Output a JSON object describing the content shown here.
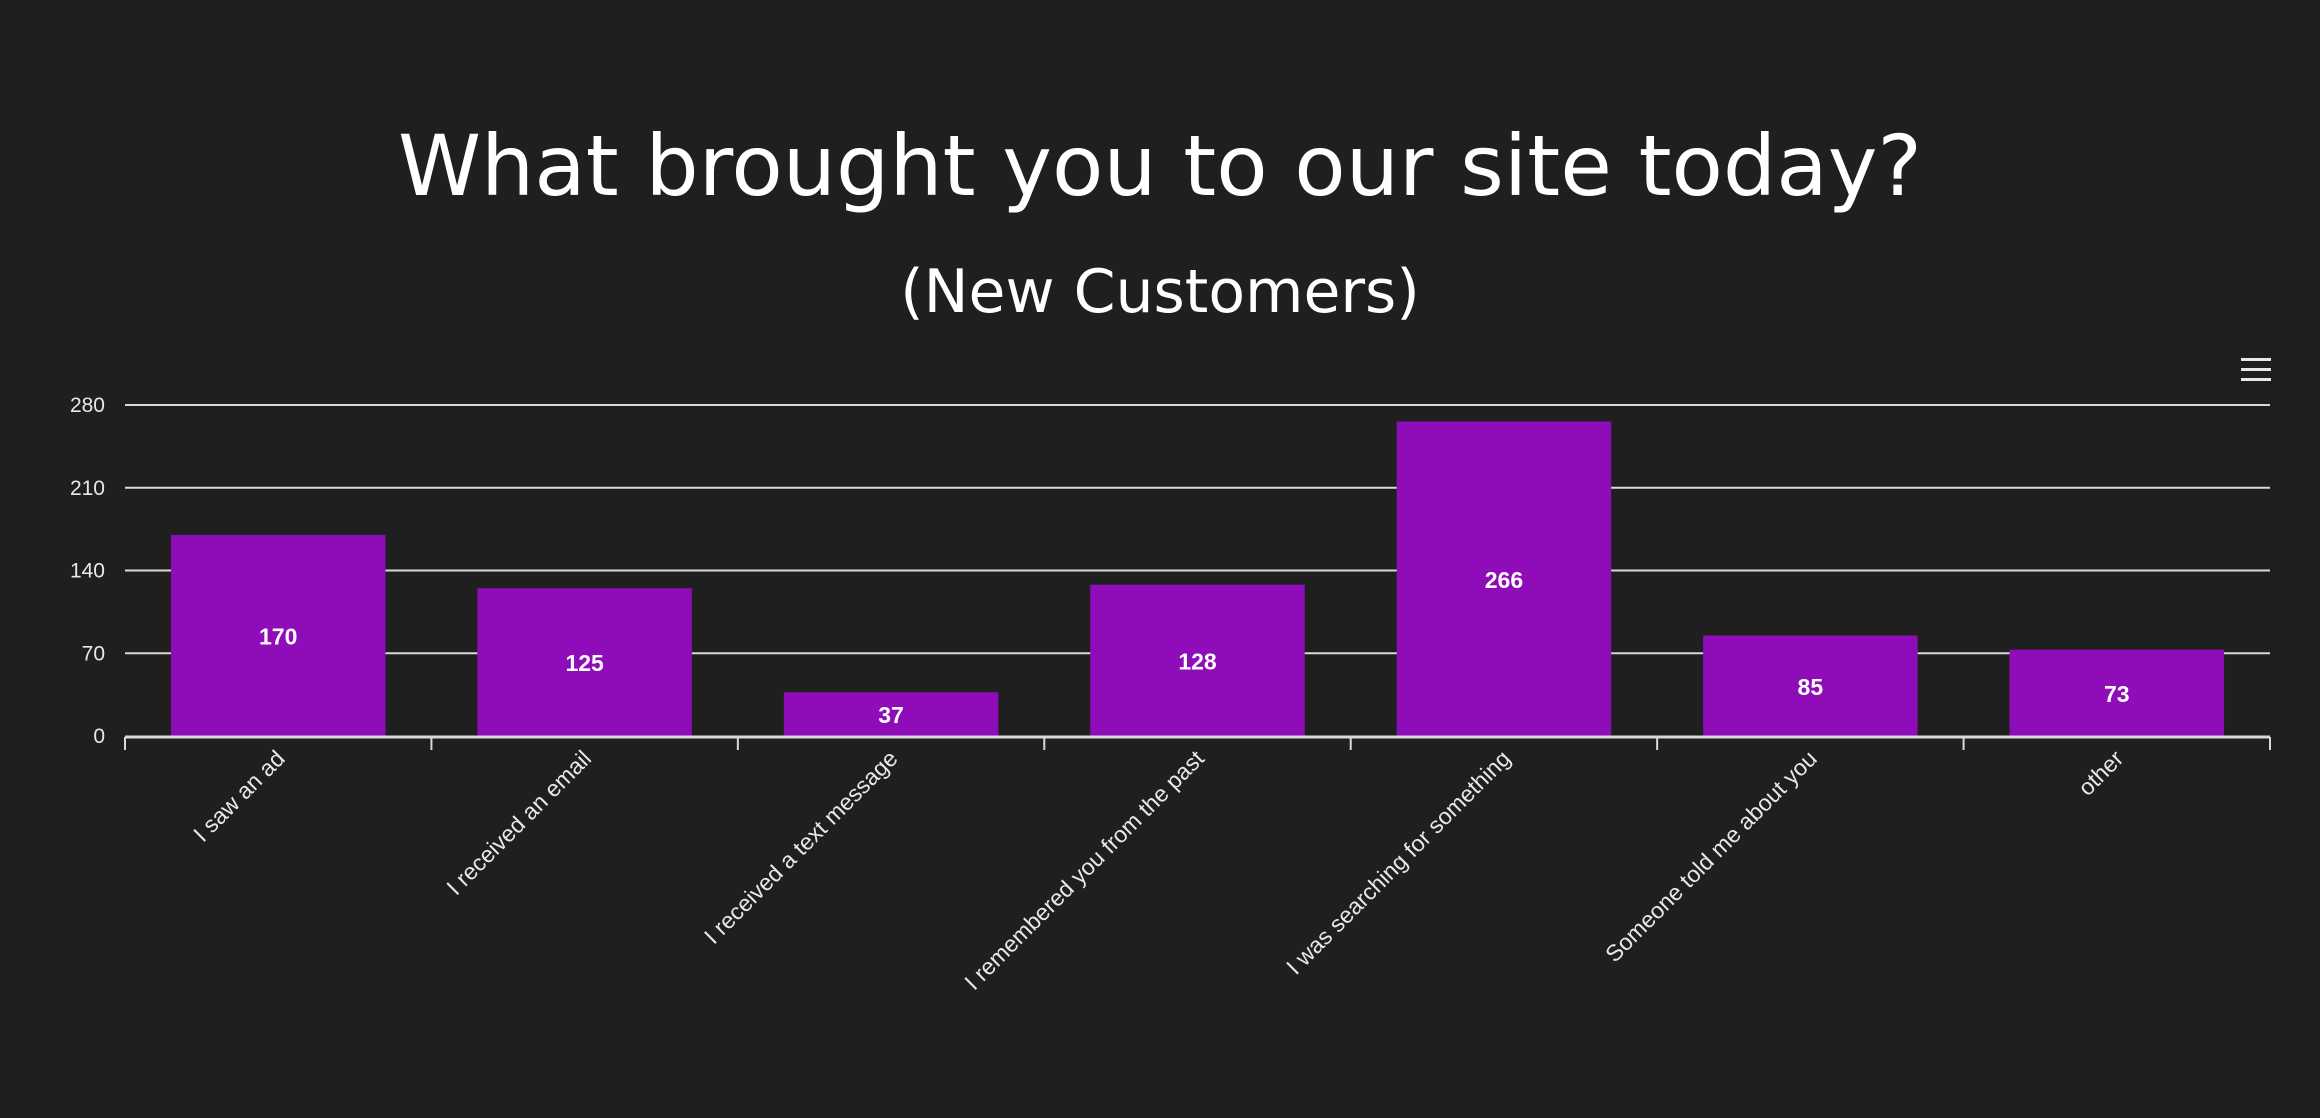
{
  "chart_data": {
    "type": "bar",
    "title": "What brought you to our site today?",
    "subtitle": "(New Customers)",
    "xlabel": "",
    "ylabel": "",
    "categories": [
      "I saw an ad",
      "I received an email",
      "I received a text message",
      "I remembered you from the past",
      "I was searching for something",
      "Someone told me about you",
      "other"
    ],
    "values": [
      170,
      125,
      37,
      128,
      266,
      85,
      73
    ],
    "ylim": [
      0,
      280
    ],
    "yticks": [
      0,
      70,
      140,
      210,
      280
    ],
    "grid": true,
    "legend": "none",
    "data_labels": true
  },
  "colors": {
    "background": "#1f1f1f",
    "bar": "#8f0db8",
    "text": "#ffffff",
    "axis_text": "#e8e8e8",
    "grid": "#d9d9d9"
  },
  "toolbar": {
    "menu_icon": "hamburger-menu-icon"
  }
}
